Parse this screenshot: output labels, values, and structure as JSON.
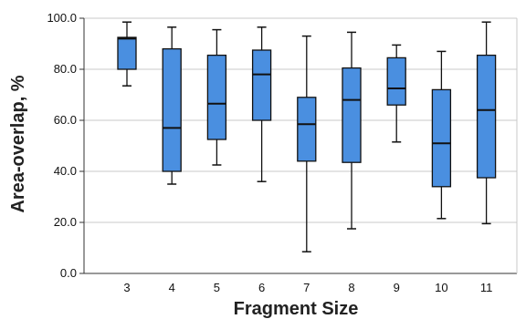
{
  "chart_data": {
    "type": "box",
    "title": "",
    "xlabel": "Fragment Size",
    "ylabel": "Area-overlap, %",
    "ylim": [
      0,
      100
    ],
    "yticks": [
      "0.0",
      "20.0",
      "40.0",
      "60.0",
      "80.0",
      "100.0"
    ],
    "grid": "horizontal",
    "box_color": "#4a8fe0",
    "categories": [
      "3",
      "4",
      "5",
      "6",
      "7",
      "8",
      "9",
      "10",
      "11"
    ],
    "boxes": [
      {
        "category": "3",
        "min": 73.5,
        "q1": 80.0,
        "median": 92.0,
        "q3": 92.5,
        "max": 98.5
      },
      {
        "category": "4",
        "min": 35.0,
        "q1": 40.0,
        "median": 57.0,
        "q3": 88.0,
        "max": 96.5
      },
      {
        "category": "5",
        "min": 42.5,
        "q1": 52.5,
        "median": 66.5,
        "q3": 85.5,
        "max": 95.5
      },
      {
        "category": "6",
        "min": 36.0,
        "q1": 60.0,
        "median": 78.0,
        "q3": 87.5,
        "max": 96.5
      },
      {
        "category": "7",
        "min": 8.5,
        "q1": 44.0,
        "median": 58.5,
        "q3": 69.0,
        "max": 93.0
      },
      {
        "category": "8",
        "min": 17.5,
        "q1": 43.5,
        "median": 68.0,
        "q3": 80.5,
        "max": 94.5
      },
      {
        "category": "9",
        "min": 51.5,
        "q1": 66.0,
        "median": 72.5,
        "q3": 84.5,
        "max": 89.5
      },
      {
        "category": "10",
        "min": 21.5,
        "q1": 34.0,
        "median": 51.0,
        "q3": 72.0,
        "max": 87.0
      },
      {
        "category": "11",
        "min": 19.5,
        "q1": 37.5,
        "median": 64.0,
        "q3": 85.5,
        "max": 98.5
      }
    ]
  }
}
